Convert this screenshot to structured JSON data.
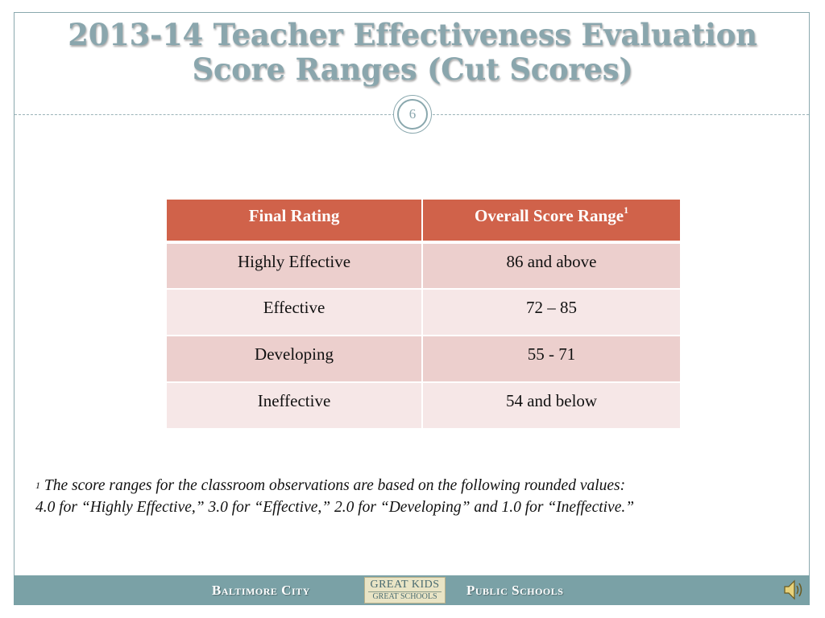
{
  "slide": {
    "title_line1": "2013-14 Teacher Effectiveness Evaluation",
    "title_line2": "Score Ranges (Cut Scores)",
    "slide_number": "6"
  },
  "table": {
    "headers": [
      "Final Rating",
      "Overall Score Range"
    ],
    "header_superscript": "1",
    "rows": [
      {
        "rating": "Highly Effective",
        "range": "86 and above"
      },
      {
        "rating": "Effective",
        "range": "72 – 85"
      },
      {
        "rating": "Developing",
        "range": "55 - 71"
      },
      {
        "rating": "Ineffective",
        "range": "54 and below"
      }
    ]
  },
  "footnote": {
    "marker": "1",
    "line1": " The score ranges for the classroom observations are based on the following rounded values:",
    "line2": "4.0 for “Highly Effective,” 3.0 for “Effective,” 2.0 for “Developing” and 1.0 for “Ineffective.”"
  },
  "footer": {
    "left_text": "Baltimore City",
    "right_text": "Public Schools",
    "logo_line1": "GREAT KIDS",
    "logo_line2": "GREAT SCHOOLS"
  },
  "icons": {
    "speaker": "speaker-icon"
  },
  "colors": {
    "header_bg": "#d0624a",
    "row_odd": "#eccfcd",
    "row_even": "#f6e7e7",
    "accent": "#8aa6ad",
    "footer_bg": "#7aa1a6"
  }
}
